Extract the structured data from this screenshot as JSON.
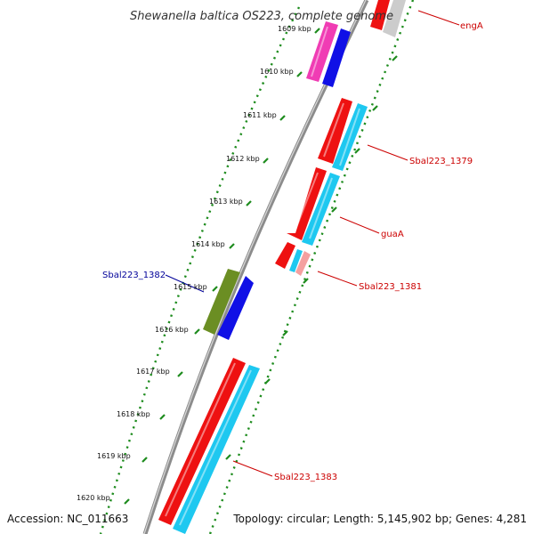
{
  "title": "Shewanella baltica OS223, complete genome",
  "footer": {
    "accession": "Accession: NC_011663",
    "topology": "Topology: circular; Length: 5,145,902 bp; Genes: 4,281"
  },
  "colors": {
    "backbone": "#8c8c8c",
    "tick": "#1e8c1e",
    "red_gene": "#ee1111",
    "cyan_gene": "#1ec8f0",
    "blue_gene": "#1010e6",
    "magenta_gene": "#f03cb4",
    "olive_gene": "#6b8e23",
    "pink_gene": "#f4a0a0",
    "grey_gene": "#cccccc",
    "label_red": "#cc0000",
    "label_blue": "#000099"
  },
  "scale_labels": [
    "1609 kbp",
    "1610 kbp",
    "1611 kbp",
    "1612 kbp",
    "1613 kbp",
    "1614 kbp",
    "1615 kbp",
    "1616 kbp",
    "1617 kbp",
    "1618 kbp",
    "1619 kbp",
    "1620 kbp"
  ],
  "gene_labels": [
    {
      "text": "engA",
      "color": "label_red"
    },
    {
      "text": "Sbal223_1379",
      "color": "label_red"
    },
    {
      "text": "guaA",
      "color": "label_red"
    },
    {
      "text": "Sbal223_1381",
      "color": "label_red"
    },
    {
      "text": "Sbal223_1382",
      "color": "label_blue"
    },
    {
      "text": "Sbal223_1383",
      "color": "label_red"
    }
  ]
}
